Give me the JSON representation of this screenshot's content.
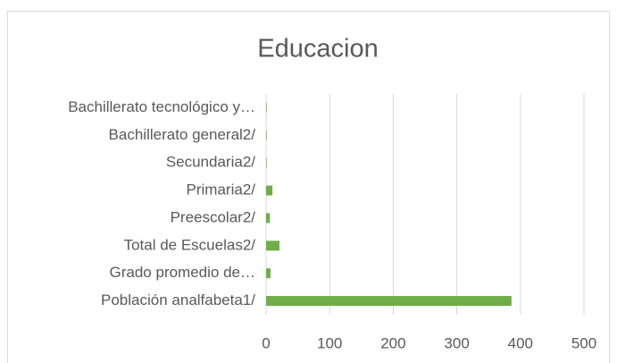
{
  "chart_data": {
    "type": "hbar",
    "title": "Educacion",
    "categories": [
      "Población analfabeta1/",
      "Grado promedio de…",
      "Total de Escuelas2/",
      "Preescolar2/",
      "Primaria2/",
      "Secundaria2/",
      "Bachillerato general2/",
      "Bachillerato tecnológico y…"
    ],
    "values": [
      386,
      7,
      21,
      6,
      10,
      1,
      1,
      1
    ],
    "color": "#70ad47",
    "xlim": [
      0,
      500
    ],
    "xticks": [
      0,
      100,
      200,
      300,
      400,
      500
    ],
    "grid": true
  }
}
